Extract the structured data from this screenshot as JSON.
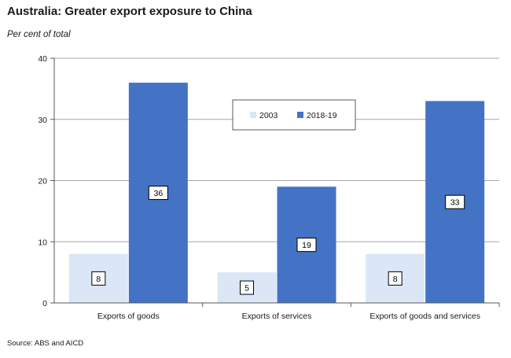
{
  "title": "Australia: Greater export exposure to China",
  "subtitle": "Per cent of total",
  "source": "Source: ABS and AICD",
  "chart_data": {
    "type": "bar",
    "categories": [
      "Exports of goods",
      "Exports of services",
      "Exports of goods and services"
    ],
    "series": [
      {
        "name": "2003",
        "values": [
          8,
          5,
          8
        ],
        "color": "#dbe6f6"
      },
      {
        "name": "2018-19",
        "values": [
          36,
          19,
          33
        ],
        "color": "#4472c4"
      }
    ],
    "ylim": [
      0,
      40
    ],
    "yticks": [
      0,
      10,
      20,
      30,
      40
    ],
    "grid": true,
    "legend": "top-center",
    "data_labels": true
  }
}
